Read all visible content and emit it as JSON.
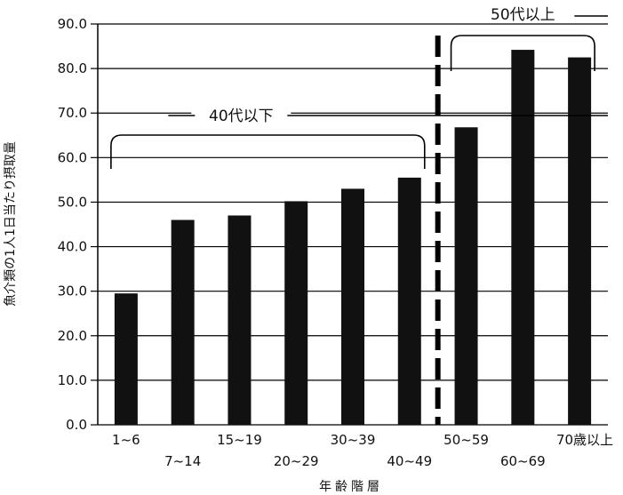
{
  "chart_data": {
    "type": "bar",
    "title": "",
    "xlabel": "年齢階層",
    "ylabel": "魚介類の1人1日当たり摂取量",
    "ylim": [
      0,
      90
    ],
    "yticks": [
      "0.0",
      "10.0",
      "20.0",
      "30.0",
      "40.0",
      "50.0",
      "60.0",
      "70.0",
      "80.0",
      "90.0"
    ],
    "categories": [
      "1~6",
      "7~14",
      "15~19",
      "20~29",
      "30~39",
      "40~49",
      "50~59",
      "60~69",
      "70歳以上"
    ],
    "values": [
      29.5,
      46.0,
      47.0,
      50.2,
      53.0,
      55.5,
      66.8,
      84.2,
      82.5
    ],
    "grid": true,
    "colors": {
      "bar": "#111111",
      "grid": "#000000",
      "divider": "#000000"
    },
    "annotations": [
      {
        "label": "40代以下",
        "categories": [
          "1~6",
          "40~49"
        ]
      },
      {
        "label": "50代以上",
        "categories": [
          "50~59",
          "70歳以上"
        ]
      }
    ],
    "divider_between": [
      "40~49",
      "50~59"
    ]
  }
}
